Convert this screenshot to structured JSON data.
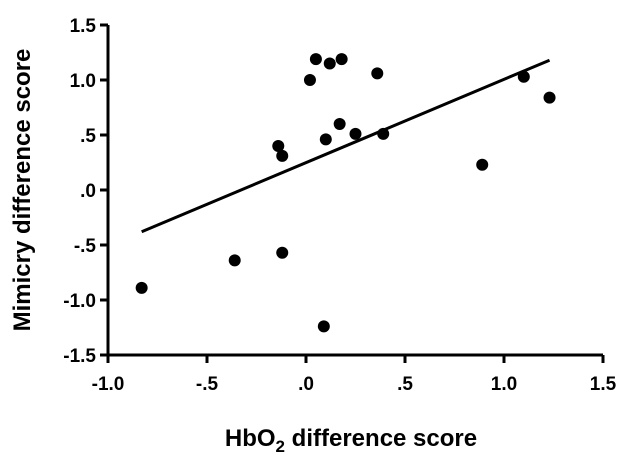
{
  "chart_data": {
    "type": "scatter",
    "title": "",
    "xlabel": "HbO",
    "xlabel_subscript": "2",
    "xlabel_suffix": " difference score",
    "ylabel": "Mimicry difference score",
    "xlim": [
      -1.0,
      1.5
    ],
    "ylim": [
      -1.5,
      1.5
    ],
    "x_ticks": [
      -1.0,
      -0.5,
      0.0,
      0.5,
      1.0,
      1.5
    ],
    "x_tick_labels": [
      "-1.0",
      "-.5",
      ".0",
      ".5",
      "1.0",
      "1.5"
    ],
    "y_ticks": [
      -1.5,
      -1.0,
      -0.5,
      0.0,
      0.5,
      1.0,
      1.5
    ],
    "y_tick_labels": [
      "-1.5",
      "-1.0",
      "-.5",
      ".0",
      ".5",
      "1.0",
      "1.5"
    ],
    "grid": false,
    "legend": "none",
    "points": [
      {
        "x": -0.83,
        "y": -0.89
      },
      {
        "x": -0.36,
        "y": -0.64
      },
      {
        "x": -0.12,
        "y": -0.57
      },
      {
        "x": -0.14,
        "y": 0.4
      },
      {
        "x": -0.12,
        "y": 0.31
      },
      {
        "x": 0.02,
        "y": 1.0
      },
      {
        "x": 0.05,
        "y": 1.19
      },
      {
        "x": 0.12,
        "y": 1.15
      },
      {
        "x": 0.18,
        "y": 1.19
      },
      {
        "x": 0.1,
        "y": 0.46
      },
      {
        "x": 0.17,
        "y": 0.6
      },
      {
        "x": 0.25,
        "y": 0.51
      },
      {
        "x": 0.36,
        "y": 1.06
      },
      {
        "x": 0.39,
        "y": 0.51
      },
      {
        "x": 0.09,
        "y": -1.24
      },
      {
        "x": 0.89,
        "y": 0.23
      },
      {
        "x": 1.1,
        "y": 1.03
      },
      {
        "x": 1.23,
        "y": 0.84
      }
    ],
    "fit_line": {
      "x": [
        -0.83,
        1.23
      ],
      "y": [
        -0.38,
        1.18
      ]
    },
    "colors": {
      "points": "#000000",
      "line": "#000000",
      "axes": "#000000"
    }
  }
}
